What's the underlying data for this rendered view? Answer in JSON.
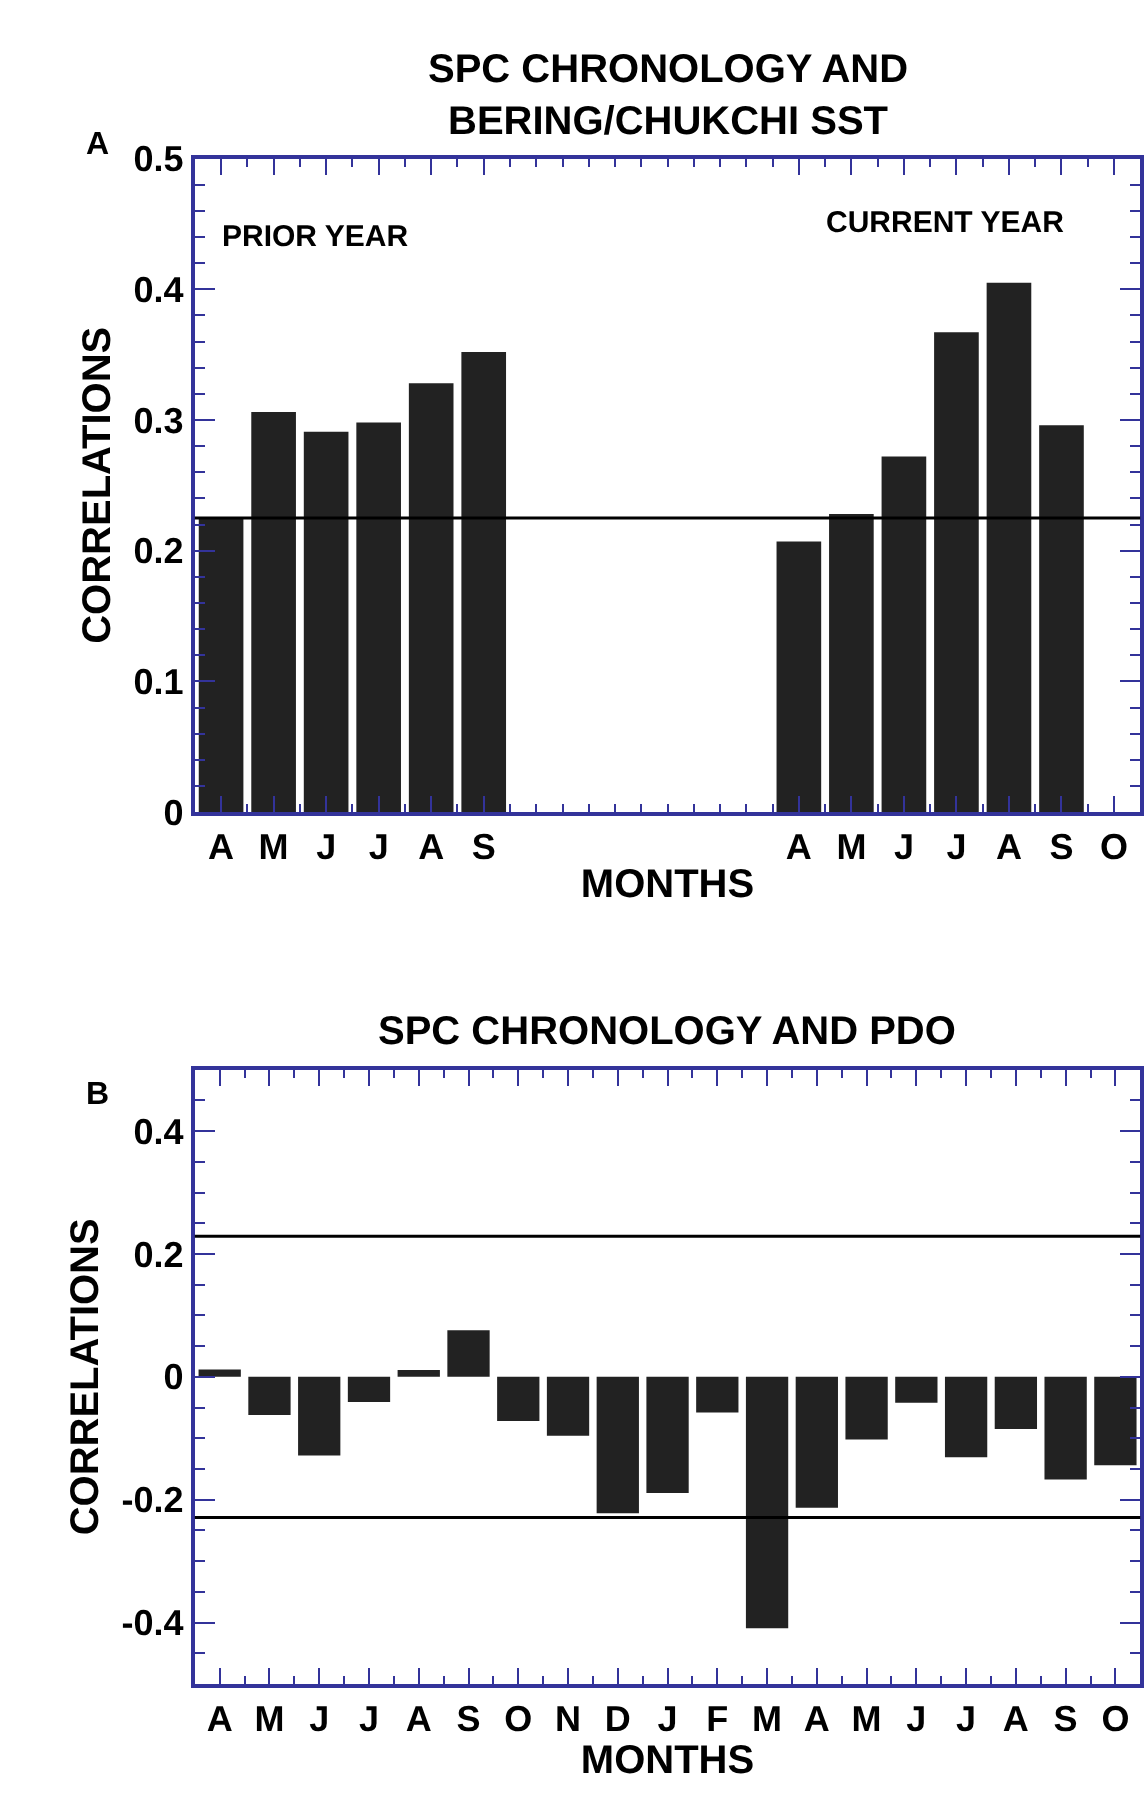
{
  "chart_data": [
    {
      "type": "bar",
      "title": "SPC CHRONOLOGY AND\nBERING/CHUKCHI SST",
      "xlabel": "MONTHS",
      "ylabel": "CORRELATIONS",
      "annotations": [
        "A",
        "PRIOR YEAR",
        "CURRENT YEAR"
      ],
      "categories": [
        "A",
        "M",
        "J",
        "J",
        "A",
        "S",
        null,
        null,
        null,
        null,
        null,
        "A",
        "M",
        "J",
        "J",
        "A",
        "S",
        "O"
      ],
      "series": [
        {
          "color": "#222222",
          "values": [
            0.225,
            0.306,
            0.291,
            0.298,
            0.328,
            0.352,
            null,
            null,
            null,
            null,
            null,
            0.207,
            0.228,
            0.272,
            0.367,
            0.405,
            0.296,
            null
          ]
        }
      ],
      "ylim": [
        0,
        0.5
      ],
      "yticks": [
        0,
        0.1,
        0.2,
        0.3,
        0.4,
        0.5
      ],
      "ref_lines": [
        {
          "axis": "y",
          "value": 0.225,
          "color": "#000000"
        }
      ]
    },
    {
      "type": "bar",
      "title": "SPC CHRONOLOGY AND PDO",
      "xlabel": "MONTHS",
      "ylabel": "CORRELATIONS",
      "annotations": [
        "B"
      ],
      "categories": [
        "A",
        "M",
        "J",
        "J",
        "A",
        "S",
        "O",
        "N",
        "D",
        "J",
        "F",
        "M",
        "A",
        "M",
        "J",
        "J",
        "A",
        "S",
        "O"
      ],
      "series": [
        {
          "color": "#222222",
          "values": [
            0.012,
            -0.062,
            -0.128,
            -0.041,
            0.011,
            0.076,
            -0.072,
            -0.096,
            -0.222,
            -0.189,
            -0.058,
            -0.409,
            -0.213,
            -0.102,
            -0.042,
            -0.131,
            -0.085,
            -0.167,
            -0.144
          ]
        }
      ],
      "ylim": [
        -0.5,
        0.5
      ],
      "yticks": [
        -0.4,
        -0.2,
        0,
        0.2,
        0.4
      ],
      "ref_lines": [
        {
          "axis": "y",
          "value": 0.229,
          "color": "#000000"
        },
        {
          "axis": "y",
          "value": -0.229,
          "color": "#000000"
        }
      ]
    }
  ]
}
